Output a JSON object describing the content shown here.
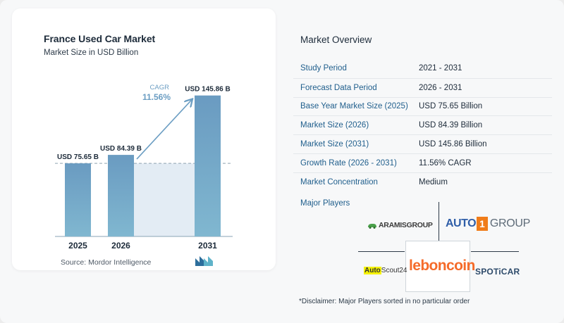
{
  "chart_data": {
    "type": "bar",
    "title": "France Used Car Market",
    "subtitle": "Market Size in USD Billion",
    "categories": [
      "2025",
      "2026",
      "2031"
    ],
    "values": [
      75.65,
      84.39,
      145.86
    ],
    "value_labels": [
      "USD 75.65 B",
      "USD 84.39 B",
      "USD 145.86 B"
    ],
    "ylim": [
      0,
      150
    ],
    "reference_line_value": 75.65,
    "cagr_label": "CAGR",
    "cagr_value": "11.56%",
    "grid": false,
    "colors": {
      "bar": "#6c9ec3",
      "bar_light": "#d9e6f0",
      "arrow": "#6c9ec3",
      "cagr": "#6c9ec3"
    }
  },
  "source": "Source:  Mordor Intelligence",
  "overview": {
    "title": "Market Overview",
    "rows": [
      {
        "label": "Study Period",
        "value": "2021 - 2031"
      },
      {
        "label": "Forecast Data Period",
        "value": "2026 - 2031"
      },
      {
        "label": "Base Year Market Size (2025)",
        "value": "USD 75.65 Billion"
      },
      {
        "label": "Market Size (2026)",
        "value": "USD 84.39 Billion"
      },
      {
        "label": "Market Size (2031)",
        "value": "USD 145.86 Billion"
      },
      {
        "label": "Growth Rate (2026 - 2031)",
        "value": "11.56% CAGR"
      },
      {
        "label": "Market Concentration",
        "value": "Medium"
      }
    ]
  },
  "players": {
    "label": "Major Players",
    "logos": {
      "aramis": "ARAMISGROUP",
      "auto1_a": "AUTO",
      "auto1_1": "1",
      "auto1_b": "GROUP",
      "leboncoin": "leboncoin",
      "autoscout_a": "Auto",
      "autoscout_b": "Scout24",
      "spoticar": "SPOTiCAR"
    }
  },
  "disclaimer": "*Disclaimer: Major Players sorted in no particular order"
}
